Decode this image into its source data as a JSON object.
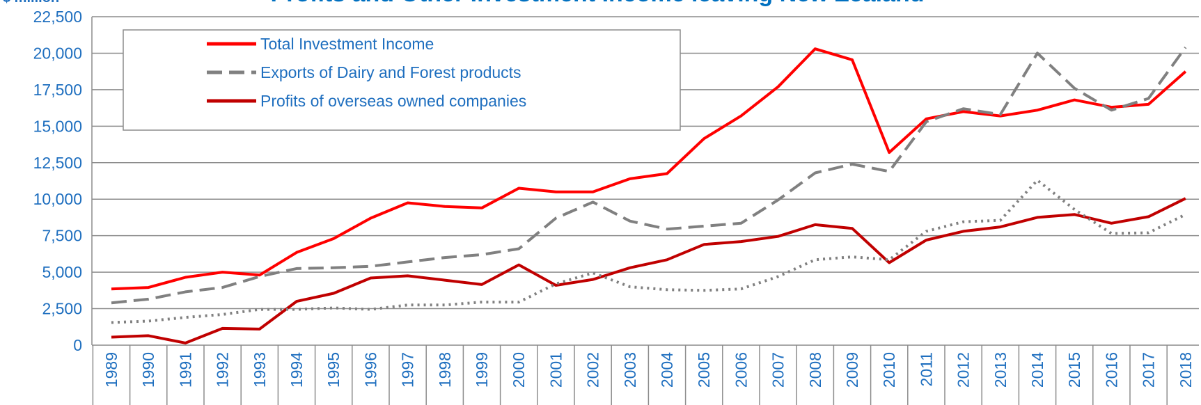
{
  "chart_data": {
    "type": "line",
    "title": "Profits and Other Investment Income leaving New Zealand",
    "y_label": "$ million",
    "categories": [
      "1989",
      "1990",
      "1991",
      "1992",
      "1993",
      "1994",
      "1995",
      "1996",
      "1997",
      "1998",
      "1999",
      "2000",
      "2001",
      "2002",
      "2003",
      "2004",
      "2005",
      "2006",
      "2007",
      "2008",
      "2009",
      "2010",
      "2011",
      "2012",
      "2013",
      "2014",
      "2015",
      "2016",
      "2017",
      "2018"
    ],
    "series": [
      {
        "name": "Total Investment Income",
        "color": "#ff0000",
        "style": "solid",
        "values": [
          3850,
          3950,
          4650,
          5000,
          4800,
          6350,
          7300,
          8700,
          9750,
          9500,
          9400,
          10750,
          10500,
          10500,
          11400,
          11750,
          14150,
          15700,
          17700,
          20300,
          19550,
          13200,
          15500,
          16000,
          15700,
          16100,
          16800,
          16300,
          16500,
          18750
        ]
      },
      {
        "name": "Exports of Dairy and Forest products",
        "color": "#808080",
        "style": "dashed",
        "values": [
          2900,
          3150,
          3650,
          3950,
          4700,
          5250,
          5300,
          5400,
          5700,
          6000,
          6200,
          6600,
          8700,
          9800,
          8500,
          7950,
          8150,
          8350,
          9950,
          11800,
          12400,
          11900,
          15300,
          16200,
          15800,
          20000,
          17600,
          16100,
          16900,
          20400
        ]
      },
      {
        "name": "Profits of overseas owned companies",
        "color": "#c00000",
        "style": "solid",
        "values": [
          550,
          650,
          150,
          1150,
          1100,
          3000,
          3550,
          4600,
          4750,
          4450,
          4150,
          5500,
          4100,
          4500,
          5300,
          5850,
          6900,
          7100,
          7450,
          8250,
          8000,
          5650,
          7200,
          7800,
          8100,
          8750,
          8950,
          8350,
          8800,
          10050
        ]
      },
      {
        "color": "#808080",
        "style": "dotted",
        "values": [
          1550,
          1650,
          1900,
          2100,
          2450,
          2450,
          2550,
          2450,
          2750,
          2750,
          2950,
          2950,
          4200,
          4950,
          4000,
          3800,
          3750,
          3850,
          4700,
          5850,
          6050,
          5850,
          7800,
          8450,
          8550,
          11300,
          9300,
          7650,
          7700,
          8950
        ]
      }
    ],
    "ylim": [
      0,
      22500
    ],
    "yticks": [
      0,
      {
        "value": 2500,
        "label": "2,500"
      },
      {
        "value": 5000,
        "label": "5,000"
      },
      {
        "value": 7500,
        "label": "7,500"
      },
      {
        "value": 10000,
        "label": "10,000"
      },
      {
        "value": 12500,
        "label": "12,500"
      },
      {
        "value": 15000,
        "label": "15,000"
      },
      {
        "value": 17500,
        "label": "17,500"
      },
      {
        "value": 20000,
        "label": "20,000"
      },
      {
        "value": 22500,
        "label": "22,500"
      }
    ],
    "grid": true,
    "legend": "upper left"
  }
}
